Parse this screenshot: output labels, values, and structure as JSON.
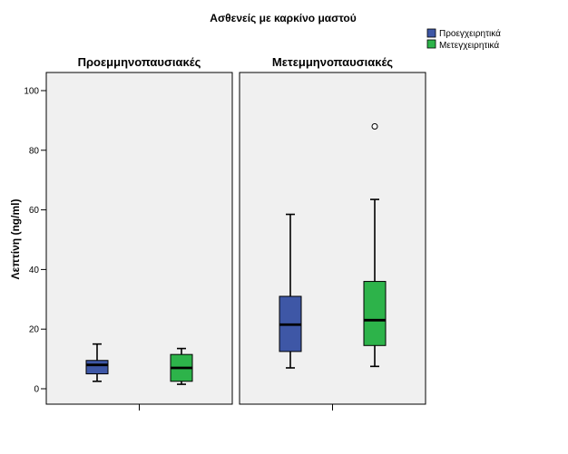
{
  "chart_data": {
    "type": "boxplot",
    "title": "Ασθενείς με καρκίνο μαστού",
    "ylabel": "Λεπτίνη (ng/ml)",
    "ylim": [
      0,
      100
    ],
    "yticks": [
      0,
      20,
      40,
      60,
      80,
      100
    ],
    "legend": {
      "placement": "top-right",
      "entries": [
        {
          "name": "Προεγχειρητικά",
          "color": "#3e57a6"
        },
        {
          "name": "Μετεγχειρητικά",
          "color": "#2db34a"
        }
      ]
    },
    "panels": [
      {
        "title": "Προεμμηνοπαυσιακές",
        "boxes": [
          {
            "series": "Προεγχειρητικά",
            "min": 2.5,
            "q1": 5,
            "median": 8,
            "q3": 9.5,
            "max": 15,
            "outliers": []
          },
          {
            "series": "Μετεγχειρητικά",
            "min": 1.5,
            "q1": 2.5,
            "median": 7,
            "q3": 11.5,
            "max": 13.5,
            "outliers": []
          }
        ]
      },
      {
        "title": "Μετεμμηνοπαυσιακές",
        "boxes": [
          {
            "series": "Προεγχειρητικά",
            "min": 7,
            "q1": 12.5,
            "median": 21.5,
            "q3": 31,
            "max": 58.5,
            "outliers": []
          },
          {
            "series": "Μετεγχειρητικά",
            "min": 7.5,
            "q1": 14.5,
            "median": 23,
            "q3": 36,
            "max": 63.5,
            "outliers": [
              88
            ]
          }
        ]
      }
    ]
  }
}
